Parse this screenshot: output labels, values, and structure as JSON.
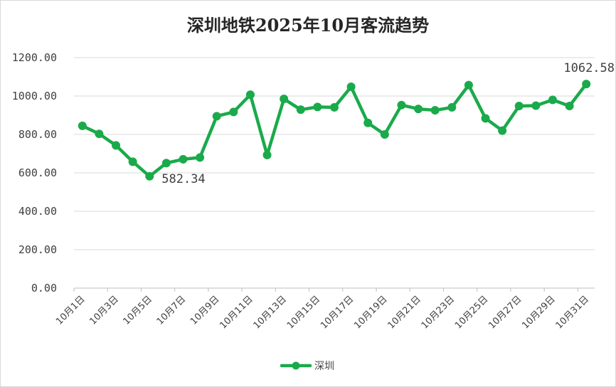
{
  "chart_data": {
    "type": "line",
    "title": "深圳地铁2025年10月客流趋势",
    "xlabel": "",
    "ylabel": "",
    "ylim": [
      0,
      1200
    ],
    "yticks": [
      "0.00",
      "200.00",
      "400.00",
      "600.00",
      "800.00",
      "1000.00",
      "1200.00"
    ],
    "ytick_values": [
      0,
      200,
      400,
      600,
      800,
      1000,
      1200
    ],
    "grid": true,
    "legend_position": "bottom",
    "categories": [
      "10月1日",
      "10月2日",
      "10月3日",
      "10月4日",
      "10月5日",
      "10月6日",
      "10月7日",
      "10月8日",
      "10月9日",
      "10月10日",
      "10月11日",
      "10月12日",
      "10月13日",
      "10月14日",
      "10月15日",
      "10月16日",
      "10月17日",
      "10月18日",
      "10月19日",
      "10月20日",
      "10月21日",
      "10月22日",
      "10月23日",
      "10月24日",
      "10月25日",
      "10月26日",
      "10月27日",
      "10月28日",
      "10月29日",
      "10月30日",
      "10月31日"
    ],
    "tick_labels_shown": [
      "10月1日",
      "10月3日",
      "10月5日",
      "10月7日",
      "10月9日",
      "10月11日",
      "10月13日",
      "10月15日",
      "10月17日",
      "10月19日",
      "10月21日",
      "10月23日",
      "10月25日",
      "10月27日",
      "10月29日",
      "10月31日"
    ],
    "series": [
      {
        "name": "深圳",
        "color": "#1aaa4b",
        "values": [
          845,
          803,
          743,
          658,
          582.34,
          651,
          671,
          680,
          895,
          917,
          1007,
          693,
          985,
          929,
          943,
          941,
          1048,
          860,
          800,
          953,
          933,
          926,
          941,
          1057,
          884,
          820,
          948,
          950,
          980,
          948,
          1062.58
        ]
      }
    ],
    "data_labels": [
      {
        "index": 4,
        "text": "582.34"
      },
      {
        "index": 30,
        "text": "1062.58"
      }
    ]
  }
}
